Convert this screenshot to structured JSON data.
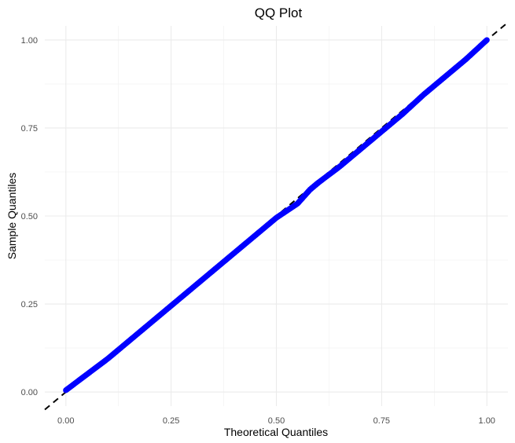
{
  "chart_data": {
    "type": "scatter",
    "title": "QQ Plot",
    "xlabel": "Theoretical Quantiles",
    "ylabel": "Sample Quantiles",
    "xlim": [
      -0.05,
      1.05
    ],
    "ylim": [
      -0.04,
      1.04
    ],
    "x_ticks": [
      0.0,
      0.25,
      0.5,
      0.75,
      1.0
    ],
    "y_ticks": [
      0.0,
      0.25,
      0.5,
      0.75,
      1.0
    ],
    "x_tick_labels": [
      "0.00",
      "0.25",
      "0.50",
      "0.75",
      "1.00"
    ],
    "y_tick_labels": [
      "0.00",
      "0.25",
      "0.50",
      "0.75",
      "1.00"
    ],
    "grid": true,
    "reference_line": {
      "intercept": 0,
      "slope": 1,
      "style": "dashed",
      "color": "#000000"
    },
    "series": [
      {
        "color": "#0000ff",
        "x": [
          0.0,
          0.05,
          0.1,
          0.15,
          0.2,
          0.25,
          0.3,
          0.35,
          0.4,
          0.45,
          0.5,
          0.55,
          0.58,
          0.6,
          0.65,
          0.7,
          0.75,
          0.8,
          0.85,
          0.9,
          0.95,
          1.0
        ],
        "y": [
          0.005,
          0.05,
          0.095,
          0.145,
          0.195,
          0.245,
          0.295,
          0.345,
          0.395,
          0.445,
          0.495,
          0.535,
          0.575,
          0.595,
          0.64,
          0.69,
          0.74,
          0.79,
          0.845,
          0.895,
          0.945,
          1.0
        ]
      }
    ]
  }
}
